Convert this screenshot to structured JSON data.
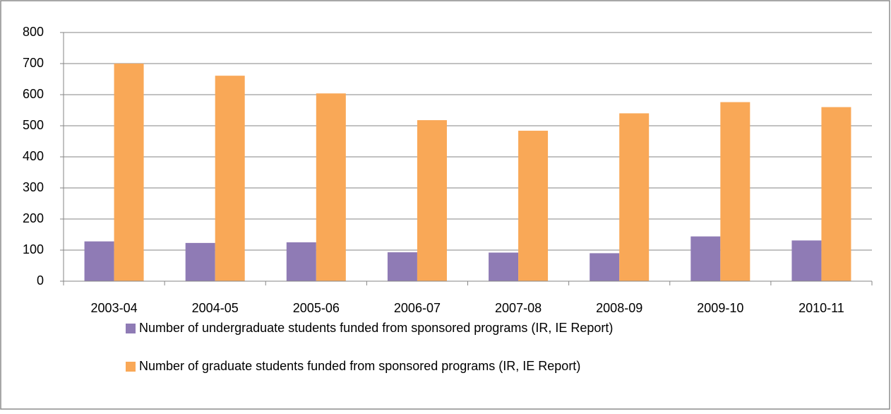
{
  "chart_data": {
    "type": "bar",
    "categories": [
      "2003-04",
      "2004-05",
      "2005-06",
      "2006-07",
      "2007-08",
      "2008-09",
      "2009-10",
      "2010-11"
    ],
    "series": [
      {
        "name": "Number of undergraduate students funded from sponsored programs (IR, IE Report)",
        "color": "#8f7bb5",
        "values": [
          128,
          123,
          125,
          93,
          92,
          90,
          144,
          131
        ]
      },
      {
        "name": "Number of graduate students funded from sponsored programs (IR, IE Report)",
        "color": "#f9a857",
        "values": [
          700,
          661,
          604,
          518,
          484,
          540,
          576,
          560
        ]
      }
    ],
    "ylim": [
      0,
      800
    ],
    "yticks": [
      0,
      100,
      200,
      300,
      400,
      500,
      600,
      700,
      800
    ],
    "grid": true,
    "legend": "bottom"
  }
}
